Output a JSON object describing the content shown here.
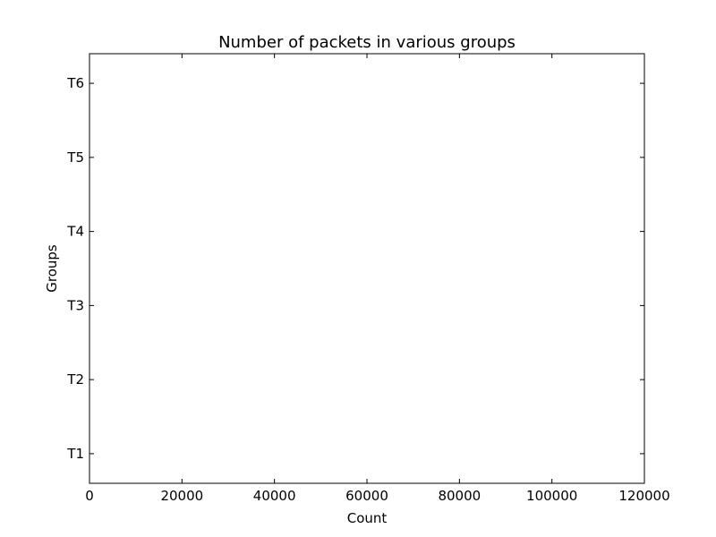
{
  "chart_data": {
    "type": "bar",
    "orientation": "horizontal",
    "title": "Number of packets in various groups",
    "xlabel": "Count",
    "ylabel": "Groups",
    "categories": [
      "T1",
      "T2",
      "T3",
      "T4",
      "T5",
      "T6"
    ],
    "values": [
      0,
      0,
      0,
      0,
      0,
      0
    ],
    "xlim": [
      0,
      120000
    ],
    "xticks": [
      0,
      20000,
      40000,
      60000,
      80000,
      100000,
      120000
    ],
    "grid": false,
    "legend": "none"
  }
}
